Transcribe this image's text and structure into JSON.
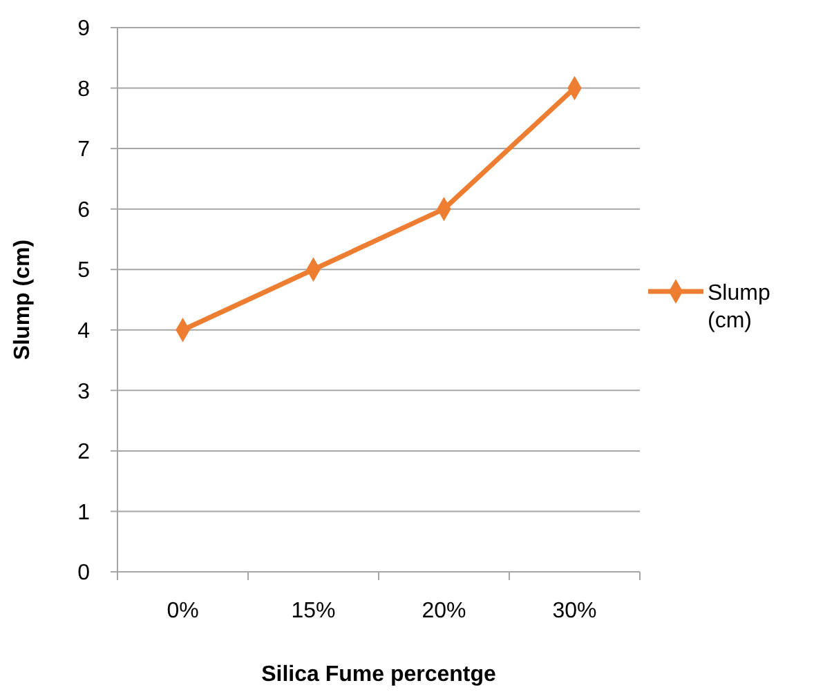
{
  "chart_data": {
    "type": "line",
    "xlabel": "Silica Fume percentge",
    "ylabel": "Slump (cm)",
    "categories": [
      "0%",
      "15%",
      "20%",
      "30%"
    ],
    "series": [
      {
        "name": "Slump (cm)",
        "color": "#ed7d31",
        "values": [
          4,
          5,
          6,
          8
        ]
      }
    ],
    "ylim": [
      0,
      9
    ],
    "yticks": [
      0,
      1,
      2,
      3,
      4,
      5,
      6,
      7,
      8,
      9
    ],
    "grid": "y",
    "legend": "right",
    "marker": "diamond",
    "line_style": "solid"
  }
}
